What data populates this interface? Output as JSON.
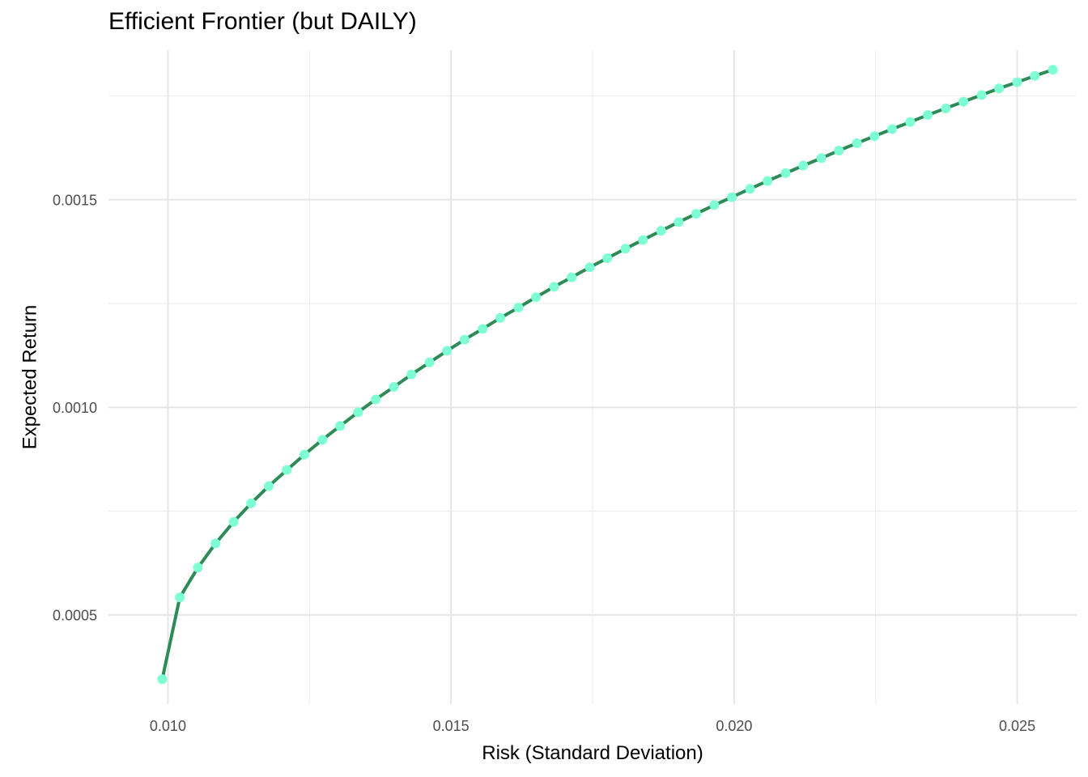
{
  "chart_data": {
    "type": "line",
    "title": "Efficient Frontier (but DAILY)",
    "xlabel": "Risk (Standard Deviation)",
    "ylabel": "Expected Return",
    "xlim": [
      0.00895,
      0.02605
    ],
    "ylim": [
      0.000285,
      0.00186
    ],
    "x_ticks": [
      0.01,
      0.015,
      0.02,
      0.025
    ],
    "x_tick_labels": [
      "0.010",
      "0.015",
      "0.020",
      "0.025"
    ],
    "y_ticks": [
      0.0005,
      0.001,
      0.0015
    ],
    "y_tick_labels": [
      "0.0005",
      "0.0010",
      "0.0015"
    ],
    "grid": true,
    "line_color": "#2e8b57",
    "point_color": "#7fffd4",
    "series": [
      {
        "x": [
          0.0099,
          0.01021,
          0.01053,
          0.01084,
          0.01116,
          0.01147,
          0.01178,
          0.0121,
          0.01241,
          0.01273,
          0.01304,
          0.01336,
          0.01367,
          0.01399,
          0.0143,
          0.01462,
          0.01493,
          0.01524,
          0.01556,
          0.01587,
          0.01619,
          0.0165,
          0.01682,
          0.01713,
          0.01745,
          0.01776,
          0.01808,
          0.01839,
          0.01871,
          0.01902,
          0.01933,
          0.01965,
          0.01996,
          0.02028,
          0.02059,
          0.02091,
          0.02122,
          0.02154,
          0.02185,
          0.02217,
          0.02248,
          0.02279,
          0.02311,
          0.02342,
          0.02374,
          0.02405,
          0.02437,
          0.02468,
          0.025,
          0.02531,
          0.02563
        ],
        "y": [
          0.000345,
          0.000542,
          0.000614,
          0.000672,
          0.000724,
          0.000769,
          0.00081,
          0.000849,
          0.000886,
          0.000922,
          0.000955,
          0.000988,
          0.001019,
          0.001049,
          0.001079,
          0.001108,
          0.001136,
          0.001163,
          0.001189,
          0.001215,
          0.00124,
          0.001265,
          0.00129,
          0.001313,
          0.001337,
          0.001359,
          0.001382,
          0.001403,
          0.001425,
          0.001446,
          0.001466,
          0.001487,
          0.001506,
          0.001526,
          0.001545,
          0.001564,
          0.001582,
          0.0016,
          0.001618,
          0.001636,
          0.001653,
          0.00167,
          0.001687,
          0.001704,
          0.00172,
          0.001736,
          0.001752,
          0.001768,
          0.001783,
          0.001798,
          0.001813
        ]
      }
    ]
  }
}
